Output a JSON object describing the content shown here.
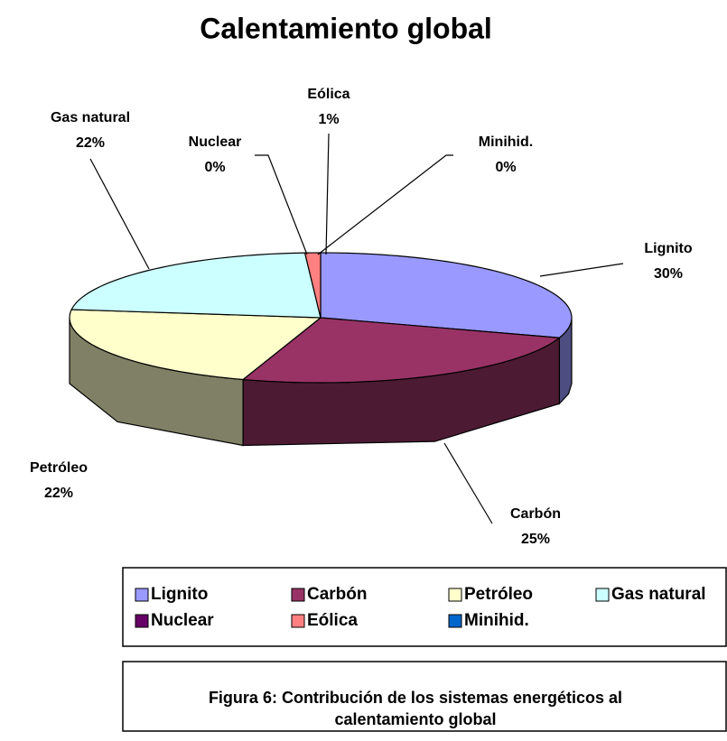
{
  "chart_data": {
    "type": "pie",
    "title": "Calentamiento global",
    "categories": [
      "Lignito",
      "Carbón",
      "Petróleo",
      "Gas natural",
      "Nuclear",
      "Eólica",
      "Minihid."
    ],
    "values": [
      30,
      25,
      22,
      22,
      0,
      1,
      0
    ],
    "value_labels": [
      "30%",
      "25%",
      "22%",
      "22%",
      "0%",
      "1%",
      "0%"
    ],
    "colors": [
      "#9999ff",
      "#993366",
      "#ffffcc",
      "#ccffff",
      "#660066",
      "#ff8080",
      "#0066cc"
    ],
    "legend": "bottom"
  },
  "caption": [
    "Figura 6: Contribución de los sistemas energéticos al",
    "calentamiento global"
  ]
}
